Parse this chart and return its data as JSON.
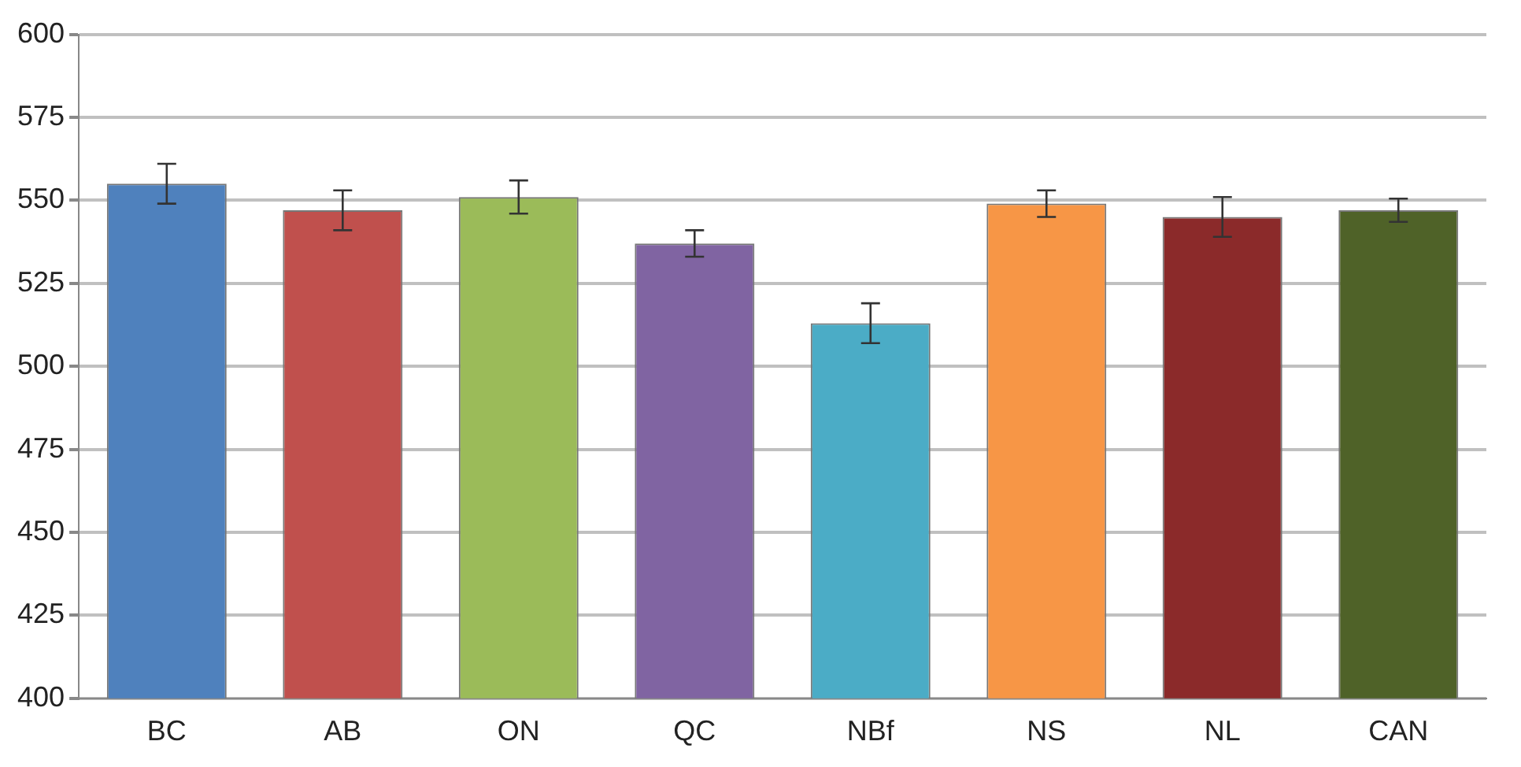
{
  "chart_data": {
    "type": "bar",
    "categories": [
      "BC",
      "AB",
      "ON",
      "QC",
      "NBf",
      "NS",
      "NL",
      "CAN"
    ],
    "values": [
      555,
      547,
      551,
      537,
      513,
      549,
      545,
      547
    ],
    "errors": [
      6,
      6,
      5,
      4,
      6,
      4,
      6,
      3.5
    ],
    "colors": [
      "#4f81bd",
      "#c0504d",
      "#9bbb59",
      "#8064a2",
      "#4bacc6",
      "#f79646",
      "#8b2a2a",
      "#4f6228"
    ],
    "ylim": [
      400,
      600
    ],
    "yticks": [
      400,
      425,
      450,
      475,
      500,
      525,
      550,
      575,
      600
    ],
    "grid": "y",
    "legend": false
  }
}
